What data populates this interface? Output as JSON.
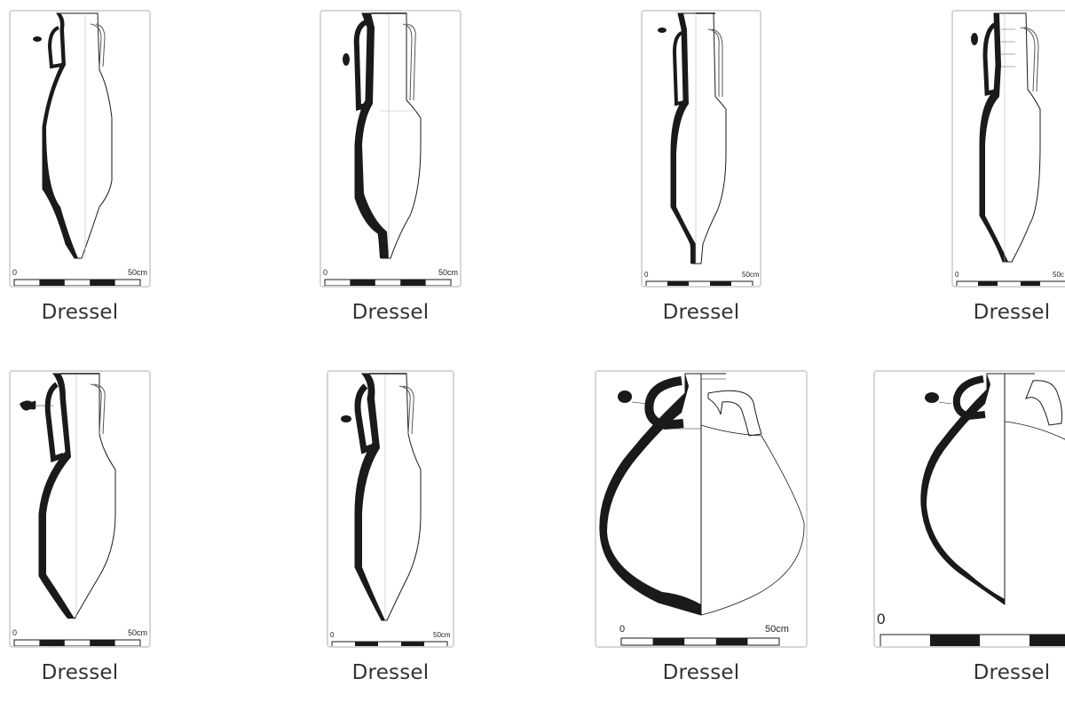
{
  "gallery": {
    "items": [
      {
        "caption": "Dressel",
        "scale_start": "0",
        "scale_end": "50cm"
      },
      {
        "caption": "Dressel",
        "scale_start": "0",
        "scale_end": "50cm"
      },
      {
        "caption": "Dressel",
        "scale_start": "0",
        "scale_end": "50cm"
      },
      {
        "caption": "Dressel",
        "scale_start": "0",
        "scale_end": "50c"
      },
      {
        "caption": "Dressel",
        "scale_start": "0",
        "scale_end": "50cm"
      },
      {
        "caption": "Dressel",
        "scale_start": "0",
        "scale_end": "50cm"
      },
      {
        "caption": "Dressel",
        "scale_start": "0",
        "scale_end": "50cm"
      },
      {
        "caption": "Dressel",
        "scale_start": "0",
        "scale_end": ""
      }
    ]
  },
  "colors": {
    "thumb_border": "#d6d6d6",
    "ink": "#1a1a1a",
    "caption": "#333333"
  }
}
